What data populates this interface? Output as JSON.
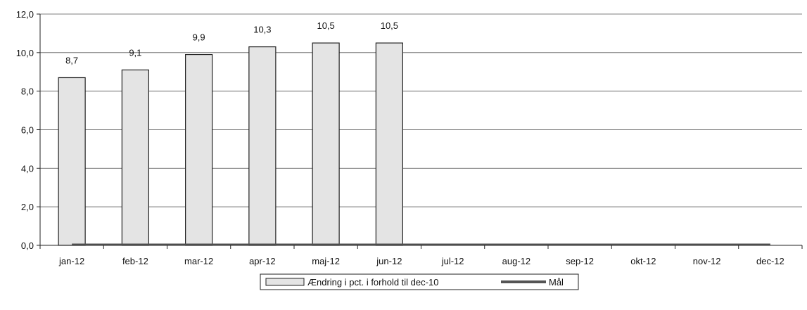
{
  "chart_data": {
    "type": "bar",
    "categories": [
      "jan-12",
      "feb-12",
      "mar-12",
      "apr-12",
      "maj-12",
      "jun-12",
      "jul-12",
      "aug-12",
      "sep-12",
      "okt-12",
      "nov-12",
      "dec-12"
    ],
    "series": [
      {
        "name": "Ændring i pct. i forhold til dec-10",
        "type": "bar",
        "values": [
          8.7,
          9.1,
          9.9,
          10.3,
          10.5,
          10.5,
          null,
          null,
          null,
          null,
          null,
          null
        ],
        "data_labels": [
          "8,7",
          "9,1",
          "9,9",
          "10,3",
          "10,5",
          "10,5",
          "",
          "",
          "",
          "",
          "",
          ""
        ],
        "color": "#e4e4e4"
      },
      {
        "name": "Mål",
        "type": "line",
        "values": [
          0.0,
          0.0,
          0.0,
          0.0,
          0.0,
          0.0,
          0.0,
          0.0,
          0.0,
          0.0,
          0.0,
          0.0
        ],
        "color": "#555555"
      }
    ],
    "y_ticks": [
      0,
      2,
      4,
      6,
      8,
      10,
      12
    ],
    "y_tick_labels": [
      "0,0",
      "2,0",
      "4,0",
      "6,0",
      "8,0",
      "10,0",
      "12,0"
    ],
    "ylim": [
      0,
      12
    ],
    "title": "",
    "xlabel": "",
    "ylabel": "",
    "grid": "horizontal",
    "legend_position": "bottom"
  }
}
